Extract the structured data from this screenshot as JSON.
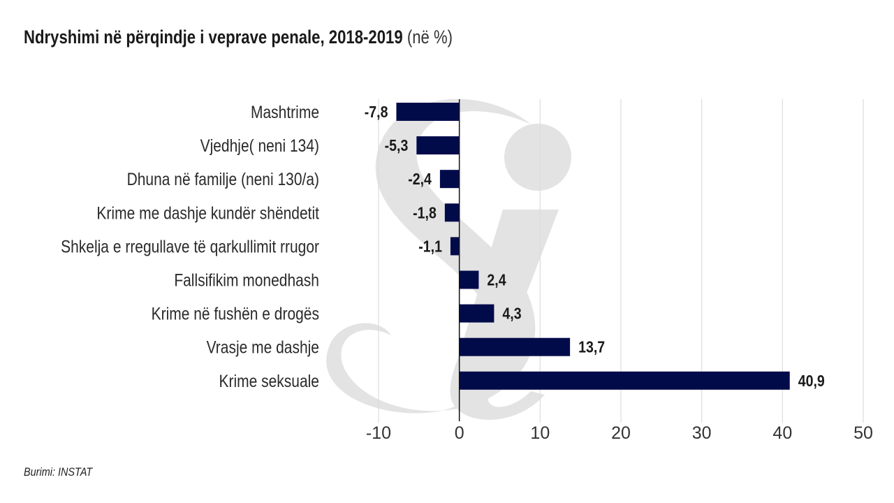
{
  "chart_data": {
    "type": "bar",
    "orientation": "horizontal",
    "title": "Ndryshimi në përqindje i veprave penale, 2018-2019",
    "title_unit": "(në %)",
    "source": "Burimi: INSTAT",
    "categories": [
      "Mashtrime",
      "Vjedhje( neni 134)",
      "Dhuna në familje (neni 130/a)",
      "Krime me dashje kundër shëndetit",
      "Shkelja e rregullave të qarkullimit rrugor",
      "Fallsifikim monedhash",
      "Krime në fushën e drogës",
      "Vrasje me dashje",
      "Krime seksuale"
    ],
    "values": [
      -7.8,
      -5.3,
      -2.4,
      -1.8,
      -1.1,
      2.4,
      4.3,
      13.7,
      40.9
    ],
    "value_labels": [
      "-7,8",
      "-5,3",
      "-2,4",
      "-1,8",
      "-1,1",
      "2,4",
      "4,3",
      "13,7",
      "40,9"
    ],
    "xlabel": "",
    "ylabel": "",
    "xlim": [
      -10,
      50
    ],
    "xticks": [
      -10,
      0,
      10,
      20,
      30,
      40,
      50
    ],
    "xtick_labels": [
      "-10",
      "0",
      "10",
      "20",
      "30",
      "40",
      "50"
    ],
    "grid": true,
    "bar_color": "#020b4a",
    "watermark": "Si"
  }
}
